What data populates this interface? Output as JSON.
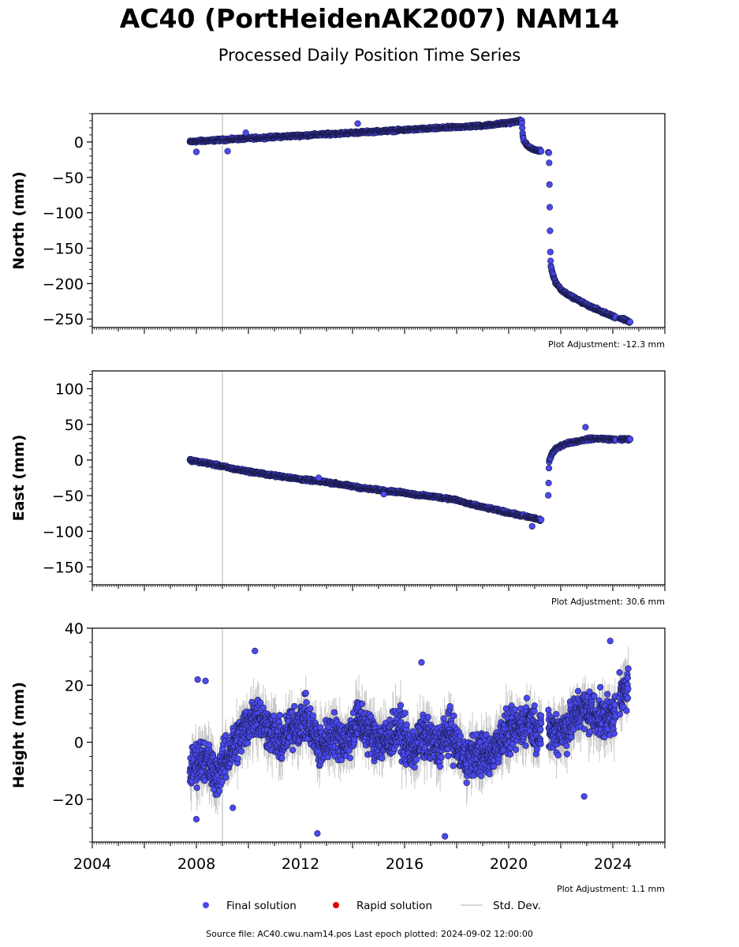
{
  "title": "AC40 (PortHeidenAK2007) NAM14",
  "subtitle": "Processed Daily Position Time Series",
  "source_text": "Source file: AC40.cwu.nam14.pos  Last epoch plotted: 2024-09-02 12:00:00",
  "legend": {
    "final": "Final solution",
    "rapid": "Rapid solution",
    "std": "Std. Dev."
  },
  "colors": {
    "final": "#4a4af0",
    "rapid": "#e00000",
    "std": "#bbbbbb",
    "event_line": "#cccccc"
  },
  "chart_data": [
    {
      "type": "scatter",
      "ylabel": "North (mm)",
      "adjustment_label": "Plot Adjustment: -12.3 mm",
      "xlim": [
        2004,
        2026
      ],
      "ylim": [
        -262,
        40
      ],
      "yticks": [
        0,
        -50,
        -100,
        -150,
        -200,
        -250
      ],
      "ytick_labels": [
        "0",
        "−50",
        "−100",
        "−150",
        "−200",
        "−250"
      ],
      "event_line_x": 2009.0,
      "series": [
        {
          "x": [
            2007.75,
            2008.0,
            2008.5,
            2009.0,
            2009.5,
            2010.0,
            2010.5,
            2011.0,
            2011.5,
            2012.0,
            2012.5,
            2013.0,
            2013.5,
            2014.0,
            2014.5,
            2015.0,
            2015.5,
            2016.0,
            2016.5,
            2017.0,
            2017.5,
            2018.0,
            2018.5,
            2019.0,
            2019.5,
            2020.0,
            2020.5,
            2020.55,
            2020.7,
            2020.9,
            2021.1,
            2021.3,
            2021.55,
            2021.6,
            2021.62,
            2021.7,
            2021.8,
            2022.0,
            2022.3,
            2022.6,
            2023.0,
            2023.3,
            2023.6,
            2023.9,
            2024.0,
            2024.3,
            2024.55,
            2024.67
          ],
          "y": [
            0,
            1,
            2,
            3,
            4,
            5,
            6,
            7,
            8,
            9,
            10,
            11,
            12,
            13,
            14,
            15,
            16,
            17,
            18,
            19,
            20,
            21,
            22,
            23,
            25,
            27,
            30,
            5,
            -5,
            -10,
            -12,
            -14,
            -15,
            -158,
            -175,
            -188,
            -198,
            -208,
            -216,
            -222,
            -230,
            -235,
            -240,
            -244,
            -246,
            -249,
            -252,
            -255
          ]
        }
      ],
      "outliers": [
        {
          "x": 2008.0,
          "y": -14
        },
        {
          "x": 2009.2,
          "y": -13
        },
        {
          "x": 2009.9,
          "y": 13
        },
        {
          "x": 2014.2,
          "y": 26
        }
      ]
    },
    {
      "type": "scatter",
      "ylabel": "East (mm)",
      "adjustment_label": "Plot Adjustment: 30.6 mm",
      "xlim": [
        2004,
        2026
      ],
      "ylim": [
        -175,
        125
      ],
      "yticks": [
        100,
        50,
        0,
        -50,
        -100,
        -150
      ],
      "ytick_labels": [
        "100",
        "50",
        "0",
        "−50",
        "−100",
        "−150"
      ],
      "event_line_x": 2009.0,
      "series": [
        {
          "x": [
            2007.75,
            2008.0,
            2008.5,
            2009.0,
            2009.5,
            2010.0,
            2010.5,
            2011.0,
            2011.5,
            2012.0,
            2012.5,
            2013.0,
            2013.5,
            2014.0,
            2014.5,
            2015.0,
            2015.5,
            2016.0,
            2016.5,
            2017.0,
            2017.5,
            2018.0,
            2018.5,
            2019.0,
            2019.5,
            2020.0,
            2020.5,
            2021.0,
            2021.5,
            2021.55,
            2021.65,
            2021.8,
            2022.0,
            2022.3,
            2022.6,
            2023.0,
            2023.3,
            2023.6,
            2023.9,
            2024.3,
            2024.5,
            2024.67
          ],
          "y": [
            0,
            -2,
            -5,
            -9,
            -13,
            -16,
            -19,
            -22,
            -24,
            -27,
            -29,
            -31,
            -34,
            -37,
            -40,
            -42,
            -44,
            -46,
            -49,
            -51,
            -53,
            -56,
            -62,
            -66,
            -70,
            -74,
            -78,
            -82,
            -87,
            -2,
            8,
            15,
            20,
            24,
            26,
            29,
            30,
            30,
            29,
            29,
            29,
            29
          ]
        }
      ],
      "outliers": [
        {
          "x": 2022.95,
          "y": 46
        },
        {
          "x": 2015.2,
          "y": -48
        },
        {
          "x": 2020.9,
          "y": -93
        },
        {
          "x": 2012.7,
          "y": -25
        }
      ]
    },
    {
      "type": "scatter",
      "ylabel": "Height (mm)",
      "adjustment_label": "Plot Adjustment: 1.1 mm",
      "xlim": [
        2004,
        2026
      ],
      "ylim": [
        -35,
        40
      ],
      "yticks": [
        40,
        20,
        0,
        -20
      ],
      "ytick_labels": [
        "40",
        "20",
        "0",
        "−20"
      ],
      "event_line_x": 2009.0,
      "xticks": [
        2004,
        2008,
        2012,
        2016,
        2020,
        2024
      ],
      "xtick_labels": [
        "2004",
        "2008",
        "2012",
        "2016",
        "2020",
        "2024"
      ],
      "series": [
        {
          "x": [
            2007.75,
            2008.25,
            2008.75,
            2009.25,
            2009.75,
            2010.25,
            2010.75,
            2011.25,
            2011.75,
            2012.25,
            2012.75,
            2013.25,
            2013.75,
            2014.25,
            2014.75,
            2015.25,
            2015.75,
            2016.25,
            2016.75,
            2017.25,
            2017.75,
            2018.25,
            2018.75,
            2019.25,
            2019.75,
            2020.25,
            2020.75,
            2021.25,
            2021.75,
            2022.25,
            2022.75,
            2023.25,
            2023.75,
            2024.25,
            2024.6
          ],
          "y": [
            -10,
            -5,
            -12,
            -4,
            3,
            10,
            5,
            0,
            6,
            8,
            -2,
            3,
            0,
            8,
            2,
            0,
            5,
            -3,
            2,
            -2,
            4,
            -6,
            -4,
            -5,
            2,
            4,
            8,
            3,
            4,
            5,
            12,
            10,
            8,
            14,
            20
          ]
        }
      ],
      "outliers": [
        {
          "x": 2008.05,
          "y": 22
        },
        {
          "x": 2008.35,
          "y": 21.5
        },
        {
          "x": 2010.25,
          "y": 32
        },
        {
          "x": 2012.65,
          "y": -32
        },
        {
          "x": 2017.55,
          "y": -33
        },
        {
          "x": 2016.65,
          "y": 28
        },
        {
          "x": 2023.9,
          "y": 35.5
        },
        {
          "x": 2022.9,
          "y": -19
        },
        {
          "x": 2008.0,
          "y": -27
        },
        {
          "x": 2009.4,
          "y": -23
        }
      ]
    }
  ]
}
